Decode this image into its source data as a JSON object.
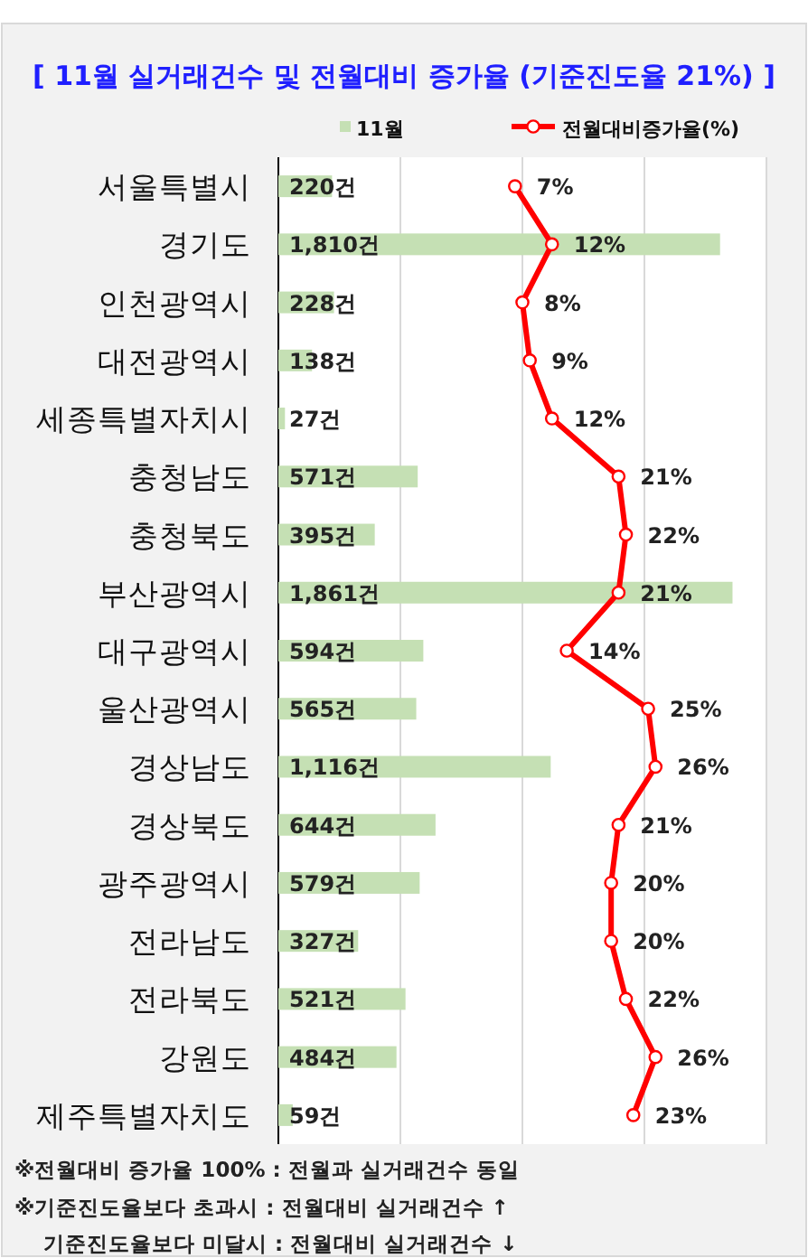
{
  "chart_data": [
    {
      "type": "bar",
      "orientation": "horizontal",
      "title": "[ 11월 실거래건수 및 전월대비 증가율 (기준진도율 21%) ]",
      "categories": [
        "서울특별시",
        "경기도",
        "인천광역시",
        "대전광역시",
        "세종특별자치시",
        "충청남도",
        "충청북도",
        "부산광역시",
        "대구광역시",
        "울산광역시",
        "경상남도",
        "경상북도",
        "광주광역시",
        "전라남도",
        "전라북도",
        "강원도",
        "제주특별자치도"
      ],
      "series": [
        {
          "name": "11월",
          "color": "#c5e0b4",
          "values": [
            220,
            1810,
            228,
            138,
            27,
            571,
            395,
            1861,
            594,
            565,
            1116,
            644,
            579,
            327,
            521,
            484,
            59
          ],
          "value_labels": [
            "220건",
            "1,810건",
            "228건",
            "138건",
            "27건",
            "571건",
            "395건",
            "1,861건",
            "594건",
            "565건",
            "1,116건",
            "644건",
            "579건",
            "327건",
            "521건",
            "484건",
            "59건"
          ]
        }
      ],
      "xlim": [
        0,
        2000
      ],
      "xticks": [
        {
          "value": 0,
          "label": null
        },
        {
          "value": 500,
          "label": null
        },
        {
          "value": 1000,
          "label": null
        },
        {
          "value": 1500,
          "label": null
        },
        {
          "value": 2000,
          "label": null
        }
      ],
      "grid": "x",
      "legend": "top",
      "tick_labels": "y",
      "annotations": [
        "※전월대비 증가율 100% : 전월과 실거래건수 동일",
        "※기준진도율보다 초과시 : 전월대비 실거래건수 ↑",
        "기준진도율보다 미달시 : 전월대비 실거래건수 ↓"
      ]
    },
    {
      "type": "line",
      "orientation": "horizontal",
      "categories": [
        null,
        null,
        null,
        null,
        null,
        null,
        null,
        null,
        null,
        null,
        null,
        null,
        null,
        null,
        null,
        null,
        null
      ],
      "series": [
        {
          "name": "전월대비증가율(%)",
          "color": "#ff0000",
          "values": [
            7,
            12,
            8,
            9,
            12,
            21,
            22,
            21,
            14,
            25,
            26,
            21,
            20,
            20,
            22,
            26,
            23
          ],
          "value_labels": [
            "7%",
            "12%",
            "8%",
            "9%",
            "12%",
            "21%",
            "22%",
            "21%",
            "14%",
            "25%",
            "26%",
            "21%",
            "20%",
            "20%",
            "22%",
            "26%",
            "23%"
          ]
        }
      ],
      "xlim": [
        -25,
        41
      ],
      "legend": "top right",
      "tick_labels": false,
      "marker": "circle"
    }
  ]
}
